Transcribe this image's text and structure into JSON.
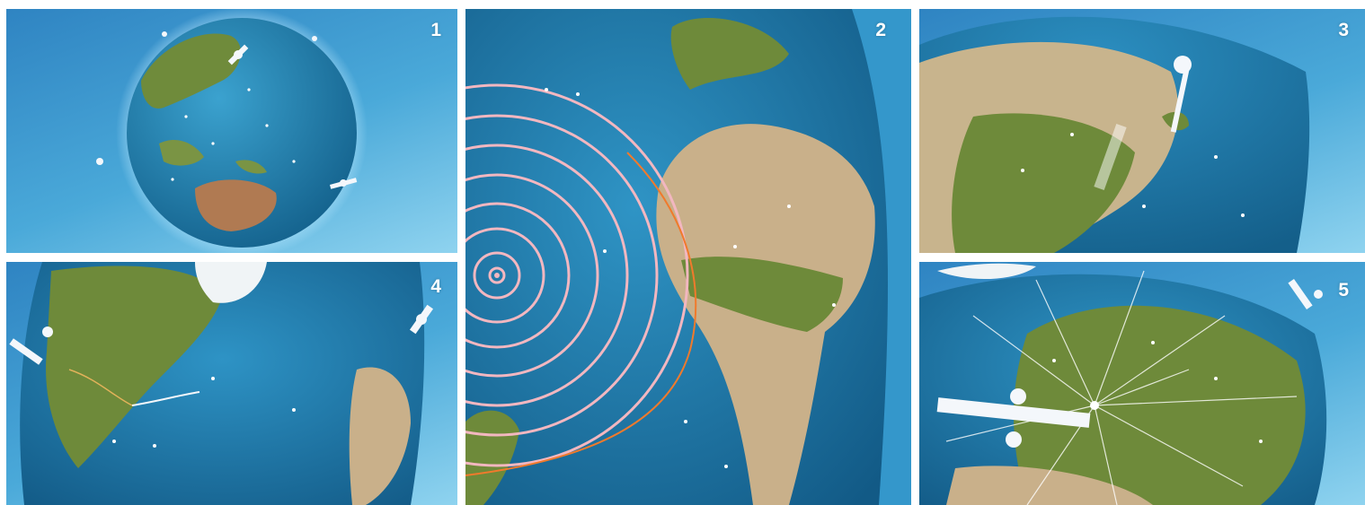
{
  "panels": [
    {
      "number": "1",
      "description": "globe-pacific-satellites"
    },
    {
      "number": "2",
      "description": "globe-africa-signal-rings"
    },
    {
      "number": "3",
      "description": "globe-asia-satellite-beam"
    },
    {
      "number": "4",
      "description": "globe-north-america-link"
    },
    {
      "number": "5",
      "description": "globe-europe-satellite-broadcast"
    }
  ],
  "colors": {
    "sky": "#4aa9d9",
    "ocean": "#1f79a8",
    "land": "#6e8a3a",
    "desert": "#c9b08a",
    "rings": "#f2b7c0",
    "orange_arc": "#f07a2c",
    "satellite": "#f4f7fb"
  }
}
